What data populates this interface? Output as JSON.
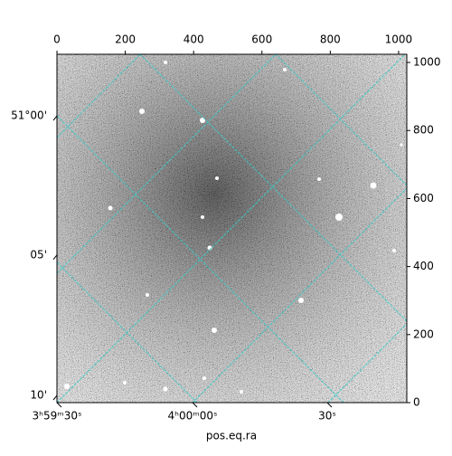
{
  "chart_data": {
    "type": "image",
    "xlabel": "pos.eq.ra",
    "xlim": [
      0,
      1024
    ],
    "ylim": [
      0,
      1024
    ],
    "xticks": [
      0,
      200,
      400,
      600,
      800,
      1000
    ],
    "yticks": [
      0,
      200,
      400,
      600,
      800,
      1000
    ],
    "ra_ticks": [
      {
        "value": 0,
        "label": "3ʰ59ᵐ30ˢ"
      },
      {
        "value": 397,
        "label": "4ʰ00ᵐ00ˢ"
      },
      {
        "value": 791,
        "label": "30ˢ"
      }
    ],
    "dec_ticks": [
      {
        "value": 843,
        "label": "51°00'"
      },
      {
        "value": 434,
        "label": "05'"
      },
      {
        "value": 21,
        "label": "10'"
      }
    ],
    "grid_color": "#3cc8c8"
  }
}
